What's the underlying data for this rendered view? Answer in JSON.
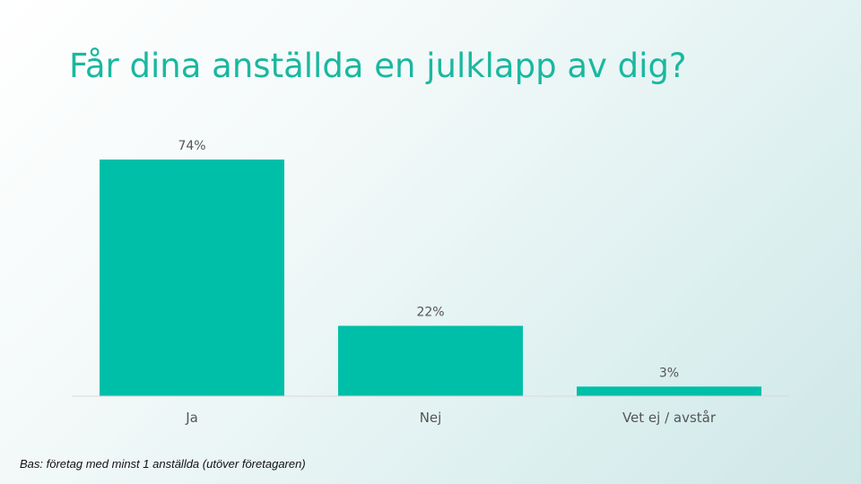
{
  "slide": {
    "title": "Får dina anställda en julklapp av dig?",
    "footnote": "Bas: företag med minst 1 anställda (utöver företagaren)"
  },
  "colors": {
    "title": "#19b8a0",
    "bar": "#00bfa8",
    "axis": "#d9d9d9",
    "label": "#555555"
  },
  "chart_data": {
    "type": "bar",
    "categories": [
      "Ja",
      "Nej",
      "Vet ej / avstår"
    ],
    "values": [
      74,
      22,
      3
    ],
    "value_labels": [
      "74%",
      "22%",
      "3%"
    ],
    "title": "Får dina anställda en julklapp av dig?",
    "xlabel": "",
    "ylabel": "",
    "ylim": [
      0,
      74
    ],
    "grid": false,
    "legend": "none"
  }
}
